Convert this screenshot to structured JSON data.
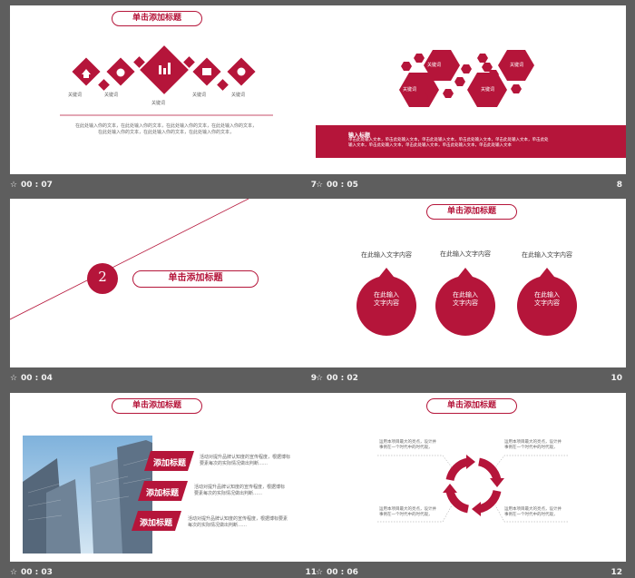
{
  "slides": [
    {
      "time": "00 : 07",
      "number": "7",
      "title": "单击添加标题",
      "keywords": [
        "关键词",
        "关键词",
        "关键词",
        "关键词",
        "关键词"
      ],
      "body_lines": [
        "在此处输入你的文本，在此处输入你的文本，在此处输入你的文本，在此处输入你的文本，",
        "在此处输入你的文本，在此处输入你的文本，在此处输入你的文本，"
      ]
    },
    {
      "time": "00 : 05",
      "number": "8",
      "keywords": [
        "关键词",
        "关键词",
        "关键词",
        "关键词"
      ],
      "band_title": "输入标题",
      "band_lines": [
        "单击此处输入文本，单击此处输入文本，单击此处输入文本，单击此处输入文本，单击此处输入文本，单击此处",
        "输入文本，单击此处输入文本，单击此处输入文本，单击此处输入文本，单击此处输入文本"
      ]
    },
    {
      "time": "00 : 04",
      "number": "9",
      "section_number": "2",
      "title": "单击添加标题"
    },
    {
      "time": "00 : 02",
      "number": "10",
      "title": "单击添加标题",
      "captions": [
        "在此输入文字内容",
        "在此输入文字内容",
        "在此输入文字内容"
      ],
      "bubble_lines": [
        [
          "在此输入",
          "文字内容"
        ],
        [
          "在此输入",
          "文字内容"
        ],
        [
          "在此输入",
          "文字内容"
        ]
      ]
    },
    {
      "time": "00 : 03",
      "number": "11",
      "title": "单击添加标题",
      "tabs": [
        "添加标题",
        "添加标题",
        "添加标题"
      ],
      "descriptions": [
        [
          "活动对提升品牌认知度的宣传程度，根据博标",
          "要素每次的实际情况做出判断……"
        ],
        [
          "活动对提升品牌认知度的宣传程度，根据博标",
          "要素每次的实际情况做出判断……"
        ],
        [
          "活动对提升品牌认知度的宣传程度，根据博标要素",
          "每次的实际情况做出判断……"
        ]
      ]
    },
    {
      "time": "00 : 06",
      "number": "12",
      "title": "单击添加标题",
      "notes": [
        [
          "运用本项目最大的亮点，设计并",
          "事例在一个时代中的时代观，"
        ],
        [
          "运用本项目最大的亮点，设计并",
          "事例在一个时代中的时代观，"
        ],
        [
          "运用本项目最大的亮点，设计并",
          "事例在一个时代中的时代观，"
        ],
        [
          "运用本项目最大的亮点，设计并",
          "事例在一个时代中的时代观，"
        ]
      ]
    }
  ],
  "footer_icon": "star-icon",
  "colors": {
    "accent": "#b5153a",
    "background": "#5e5e5e",
    "slide": "#ffffff"
  }
}
